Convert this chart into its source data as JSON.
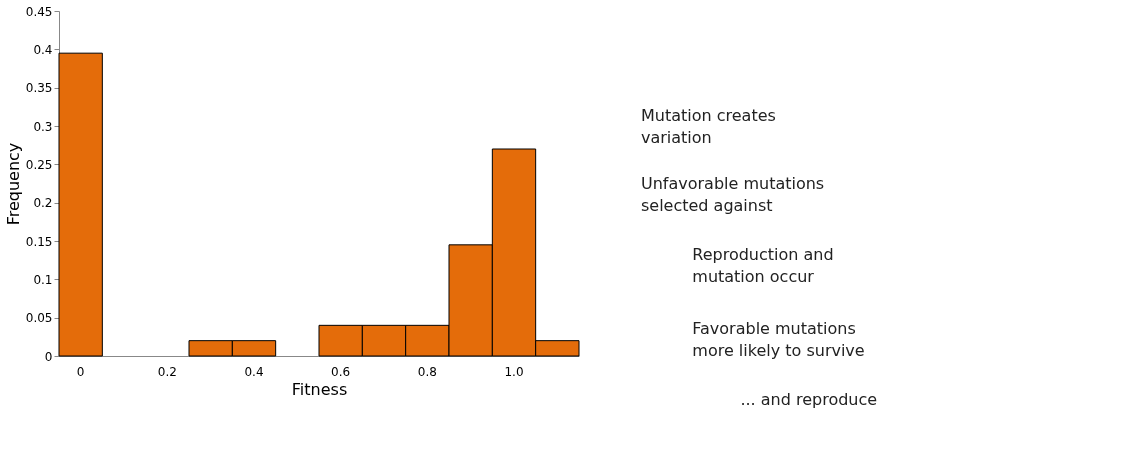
{
  "chart_data": [
    {
      "type": "bar",
      "xlabel": "Fitness",
      "ylabel": "Frequency",
      "categories": [
        "0",
        null,
        "0.2",
        null,
        "0.4",
        null,
        "0.6",
        null,
        "0.8",
        null,
        "1.0",
        null
      ],
      "values": [
        0.395,
        0,
        0,
        0.02,
        0.02,
        0,
        0.04,
        0.04,
        0.04,
        0.145,
        0.27,
        0.02
      ],
      "color": "#e46c0a",
      "ylim": [
        0,
        0.45
      ],
      "yticks": [
        0,
        0.05,
        0.1,
        0.15,
        0.2,
        0.25,
        0.3,
        0.35,
        0.4,
        0.45
      ],
      "grid": false
    },
    {
      "type": "other",
      "annotations": [
        "Mutation creates\nvariation",
        "Unfavorable mutations\nselected against",
        "Reproduction and\nmutation occur",
        "Favorable mutations\nmore likely to survive",
        "... and reproduce"
      ]
    }
  ]
}
